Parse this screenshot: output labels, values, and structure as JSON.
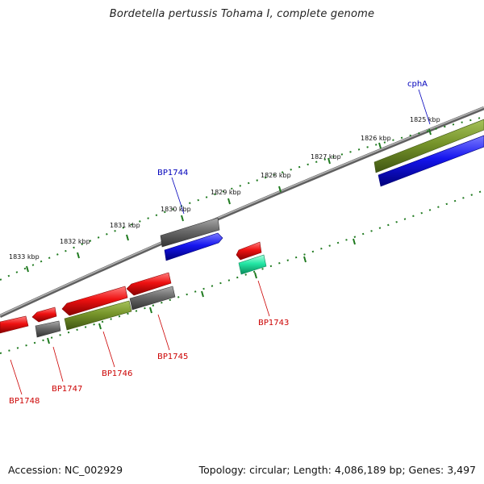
{
  "title": "Bordetella pertussis Tohama I, complete genome",
  "footer": {
    "accession": "Accession: NC_002929",
    "topology": "Topology: circular; Length: 4,086,189 bp; Genes: 3,497"
  },
  "colors": {
    "red": "#e8141c",
    "gray": "#6f6f6f",
    "blue": "#1a1aee",
    "olive": "#7b9a2a",
    "teal": "#20e0a0",
    "tick": "#1f7a1f",
    "label_red": "#cc0000",
    "label_blue": "#0000bb"
  },
  "scale_labels": [
    "1825 kbp",
    "1826 kbp",
    "1827 kbp",
    "1828 kbp",
    "1829 kbp",
    "1830 kbp",
    "1831 kbp",
    "1832 kbp",
    "1833 kbp"
  ],
  "gene_labels": {
    "cphA": "cphA",
    "BP1744": "BP1744",
    "BP1743": "BP1743",
    "BP1745": "BP1745",
    "BP1746": "BP1746",
    "BP1747": "BP1747",
    "BP1748": "BP1748"
  }
}
